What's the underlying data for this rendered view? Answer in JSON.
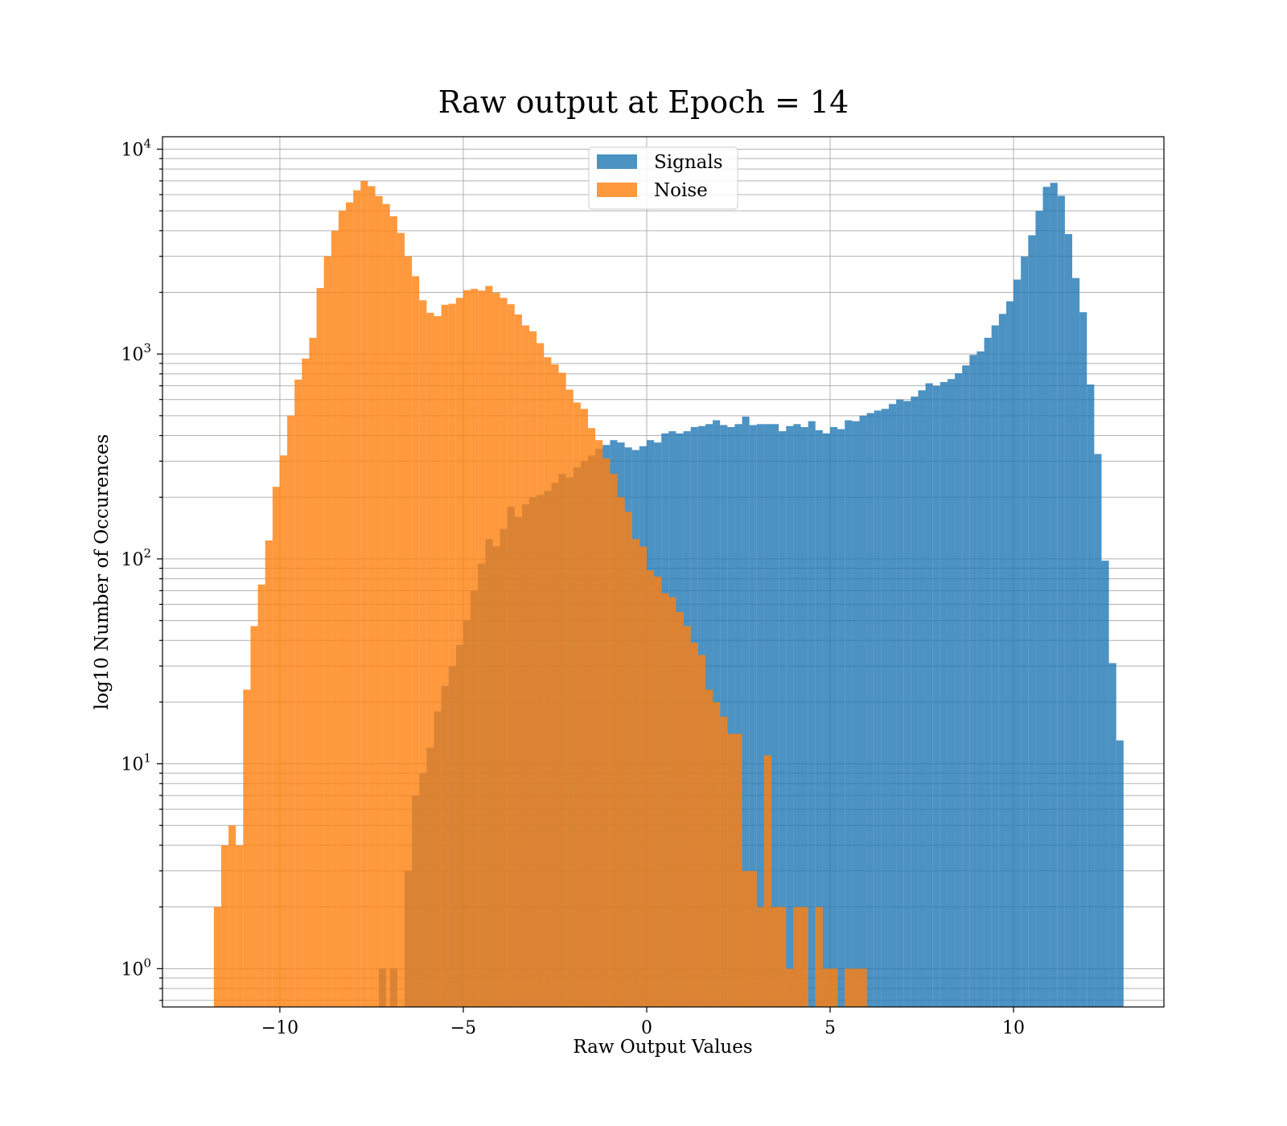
{
  "chart_data": {
    "type": "bar",
    "subtype": "histogram",
    "title": "Raw output at Epoch = 14",
    "xlabel": "Raw Output Values",
    "ylabel": "log10 Number of Occurences",
    "xlim": [
      -13.2,
      14.1
    ],
    "ylim": [
      0.65,
      11500
    ],
    "yscale": "log",
    "grid": true,
    "legend": {
      "placement": "top-center"
    },
    "xticks": [
      {
        "value": -10,
        "label": "−10"
      },
      {
        "value": -5,
        "label": "−5"
      },
      {
        "value": 0,
        "label": "0"
      },
      {
        "value": 5,
        "label": "5"
      },
      {
        "value": 10,
        "label": "10"
      }
    ],
    "yticks": [
      {
        "value": 1,
        "base": "10",
        "exp": "0"
      },
      {
        "value": 10,
        "base": "10",
        "exp": "1"
      },
      {
        "value": 100,
        "base": "10",
        "exp": "2"
      },
      {
        "value": 1000,
        "base": "10",
        "exp": "3"
      },
      {
        "value": 10000,
        "base": "10",
        "exp": "4"
      }
    ],
    "series": [
      {
        "name": "Signals",
        "color": "#1f77b4",
        "opacity": 0.8,
        "bins": [
          [
            -7.3,
            -7.1,
            1
          ],
          [
            -7.0,
            -6.8,
            1
          ],
          [
            -6.6,
            -6.4,
            3
          ],
          [
            -6.4,
            -6.2,
            7
          ],
          [
            -6.2,
            -6.0,
            9
          ],
          [
            -6.0,
            -5.8,
            12
          ],
          [
            -5.8,
            -5.6,
            18
          ],
          [
            -5.6,
            -5.4,
            24
          ],
          [
            -5.4,
            -5.2,
            30
          ],
          [
            -5.2,
            -5.0,
            38
          ],
          [
            -5.0,
            -4.8,
            50
          ],
          [
            -4.8,
            -4.6,
            70
          ],
          [
            -4.6,
            -4.4,
            95
          ],
          [
            -4.4,
            -4.2,
            125
          ],
          [
            -4.2,
            -4.0,
            115
          ],
          [
            -4.0,
            -3.8,
            140
          ],
          [
            -3.8,
            -3.6,
            180
          ],
          [
            -3.6,
            -3.4,
            160
          ],
          [
            -3.4,
            -3.2,
            185
          ],
          [
            -3.2,
            -3.0,
            200
          ],
          [
            -3.0,
            -2.8,
            205
          ],
          [
            -2.8,
            -2.6,
            215
          ],
          [
            -2.6,
            -2.4,
            235
          ],
          [
            -2.4,
            -2.2,
            260
          ],
          [
            -2.2,
            -2.0,
            250
          ],
          [
            -2.0,
            -1.8,
            280
          ],
          [
            -1.8,
            -1.6,
            300
          ],
          [
            -1.6,
            -1.4,
            320
          ],
          [
            -1.4,
            -1.2,
            345
          ],
          [
            -1.2,
            -1.0,
            360
          ],
          [
            -1.0,
            -0.8,
            380
          ],
          [
            -0.8,
            -0.6,
            370
          ],
          [
            -0.6,
            -0.4,
            350
          ],
          [
            -0.4,
            -0.2,
            340
          ],
          [
            -0.2,
            0.0,
            355
          ],
          [
            0.0,
            0.2,
            380
          ],
          [
            0.2,
            0.4,
            370
          ],
          [
            0.4,
            0.6,
            410
          ],
          [
            0.6,
            0.8,
            420
          ],
          [
            0.8,
            1.0,
            410
          ],
          [
            1.0,
            1.2,
            420
          ],
          [
            1.2,
            1.4,
            440
          ],
          [
            1.4,
            1.6,
            445
          ],
          [
            1.6,
            1.8,
            455
          ],
          [
            1.8,
            2.0,
            475
          ],
          [
            2.0,
            2.2,
            450
          ],
          [
            2.2,
            2.4,
            440
          ],
          [
            2.4,
            2.6,
            455
          ],
          [
            2.6,
            2.8,
            495
          ],
          [
            2.8,
            3.0,
            450
          ],
          [
            3.0,
            3.2,
            455
          ],
          [
            3.2,
            3.4,
            455
          ],
          [
            3.4,
            3.6,
            455
          ],
          [
            3.6,
            3.8,
            420
          ],
          [
            3.8,
            4.0,
            445
          ],
          [
            4.0,
            4.2,
            455
          ],
          [
            4.2,
            4.4,
            440
          ],
          [
            4.4,
            4.6,
            470
          ],
          [
            4.6,
            4.8,
            425
          ],
          [
            4.8,
            5.0,
            410
          ],
          [
            5.0,
            5.2,
            440
          ],
          [
            5.2,
            5.4,
            430
          ],
          [
            5.4,
            5.6,
            475
          ],
          [
            5.6,
            5.8,
            470
          ],
          [
            5.8,
            6.0,
            500
          ],
          [
            6.0,
            6.2,
            515
          ],
          [
            6.2,
            6.4,
            530
          ],
          [
            6.4,
            6.6,
            540
          ],
          [
            6.6,
            6.8,
            570
          ],
          [
            6.8,
            7.0,
            600
          ],
          [
            7.0,
            7.2,
            590
          ],
          [
            7.2,
            7.4,
            620
          ],
          [
            7.4,
            7.6,
            665
          ],
          [
            7.6,
            7.8,
            720
          ],
          [
            7.8,
            8.0,
            700
          ],
          [
            8.0,
            8.2,
            730
          ],
          [
            8.2,
            8.4,
            755
          ],
          [
            8.4,
            8.6,
            805
          ],
          [
            8.6,
            8.8,
            880
          ],
          [
            8.8,
            9.0,
            990
          ],
          [
            9.0,
            9.2,
            1030
          ],
          [
            9.2,
            9.4,
            1200
          ],
          [
            9.4,
            9.6,
            1380
          ],
          [
            9.6,
            9.8,
            1570
          ],
          [
            9.8,
            10.0,
            1810
          ],
          [
            10.0,
            10.2,
            2310
          ],
          [
            10.2,
            10.4,
            2990
          ],
          [
            10.4,
            10.6,
            3800
          ],
          [
            10.6,
            10.8,
            5000
          ],
          [
            10.8,
            11.0,
            6550
          ],
          [
            11.0,
            11.2,
            6850
          ],
          [
            11.2,
            11.4,
            5920
          ],
          [
            11.4,
            11.6,
            3850
          ],
          [
            11.6,
            11.8,
            2350
          ],
          [
            11.8,
            12.0,
            1600
          ],
          [
            12.0,
            12.2,
            710
          ],
          [
            12.2,
            12.4,
            325
          ],
          [
            12.4,
            12.6,
            98
          ],
          [
            12.6,
            12.8,
            31
          ],
          [
            12.8,
            13.0,
            13
          ]
        ]
      },
      {
        "name": "Noise",
        "color": "#ff7f0e",
        "opacity": 0.8,
        "bins": [
          [
            -11.8,
            -11.6,
            2
          ],
          [
            -11.6,
            -11.4,
            4
          ],
          [
            -11.4,
            -11.2,
            5
          ],
          [
            -11.2,
            -11.0,
            4
          ],
          [
            -11.0,
            -10.8,
            23
          ],
          [
            -10.8,
            -10.6,
            47
          ],
          [
            -10.6,
            -10.4,
            75
          ],
          [
            -10.4,
            -10.2,
            123
          ],
          [
            -10.2,
            -10.0,
            225
          ],
          [
            -10.0,
            -9.8,
            320
          ],
          [
            -9.8,
            -9.6,
            500
          ],
          [
            -9.6,
            -9.4,
            750
          ],
          [
            -9.4,
            -9.2,
            950
          ],
          [
            -9.2,
            -9.0,
            1200
          ],
          [
            -9.0,
            -8.8,
            2100
          ],
          [
            -8.8,
            -8.6,
            3000
          ],
          [
            -8.6,
            -8.4,
            4000
          ],
          [
            -8.4,
            -8.2,
            5000
          ],
          [
            -8.2,
            -8.0,
            5500
          ],
          [
            -8.0,
            -7.8,
            6300
          ],
          [
            -7.8,
            -7.6,
            7000
          ],
          [
            -7.6,
            -7.4,
            6600
          ],
          [
            -7.4,
            -7.2,
            5900
          ],
          [
            -7.2,
            -7.0,
            5400
          ],
          [
            -7.0,
            -6.8,
            4700
          ],
          [
            -6.8,
            -6.6,
            3900
          ],
          [
            -6.6,
            -6.4,
            3000
          ],
          [
            -6.4,
            -6.2,
            2400
          ],
          [
            -6.2,
            -6.0,
            1830
          ],
          [
            -6.0,
            -5.8,
            1590
          ],
          [
            -5.8,
            -5.6,
            1530
          ],
          [
            -5.6,
            -5.4,
            1740
          ],
          [
            -5.4,
            -5.2,
            1760
          ],
          [
            -5.2,
            -5.0,
            1880
          ],
          [
            -5.0,
            -4.8,
            2050
          ],
          [
            -4.8,
            -4.6,
            2080
          ],
          [
            -4.6,
            -4.4,
            2040
          ],
          [
            -4.4,
            -4.2,
            2150
          ],
          [
            -4.2,
            -4.0,
            1990
          ],
          [
            -4.0,
            -3.8,
            1880
          ],
          [
            -3.8,
            -3.6,
            1750
          ],
          [
            -3.6,
            -3.4,
            1560
          ],
          [
            -3.4,
            -3.2,
            1380
          ],
          [
            -3.2,
            -3.0,
            1290
          ],
          [
            -3.0,
            -2.8,
            1130
          ],
          [
            -2.8,
            -2.6,
            965
          ],
          [
            -2.6,
            -2.4,
            890
          ],
          [
            -2.4,
            -2.2,
            810
          ],
          [
            -2.2,
            -2.0,
            670
          ],
          [
            -2.0,
            -1.8,
            580
          ],
          [
            -1.8,
            -1.6,
            540
          ],
          [
            -1.6,
            -1.4,
            435
          ],
          [
            -1.4,
            -1.2,
            380
          ],
          [
            -1.2,
            -1.0,
            310
          ],
          [
            -1.0,
            -0.8,
            260
          ],
          [
            -0.8,
            -0.6,
            200
          ],
          [
            -0.6,
            -0.4,
            170
          ],
          [
            -0.4,
            -0.2,
            125
          ],
          [
            -0.2,
            0.0,
            115
          ],
          [
            0.0,
            0.2,
            88
          ],
          [
            0.2,
            0.4,
            82
          ],
          [
            0.4,
            0.6,
            68
          ],
          [
            0.6,
            0.8,
            65
          ],
          [
            0.8,
            1.0,
            55
          ],
          [
            1.0,
            1.2,
            47
          ],
          [
            1.2,
            1.4,
            39
          ],
          [
            1.4,
            1.6,
            34
          ],
          [
            1.6,
            1.8,
            23
          ],
          [
            1.8,
            2.0,
            20
          ],
          [
            2.0,
            2.2,
            17
          ],
          [
            2.2,
            2.4,
            14
          ],
          [
            2.4,
            2.6,
            14
          ],
          [
            2.6,
            2.8,
            3
          ],
          [
            2.8,
            3.0,
            3
          ],
          [
            3.0,
            3.2,
            2
          ],
          [
            3.2,
            3.4,
            11
          ],
          [
            3.4,
            3.6,
            2
          ],
          [
            3.6,
            3.8,
            2
          ],
          [
            3.8,
            4.0,
            1
          ],
          [
            4.0,
            4.2,
            2
          ],
          [
            4.2,
            4.4,
            2
          ],
          [
            4.6,
            4.8,
            2
          ],
          [
            4.8,
            5.0,
            1
          ],
          [
            5.0,
            5.2,
            1
          ],
          [
            5.4,
            5.6,
            1
          ],
          [
            5.6,
            5.8,
            1
          ],
          [
            5.8,
            6.0,
            1
          ]
        ]
      }
    ]
  }
}
